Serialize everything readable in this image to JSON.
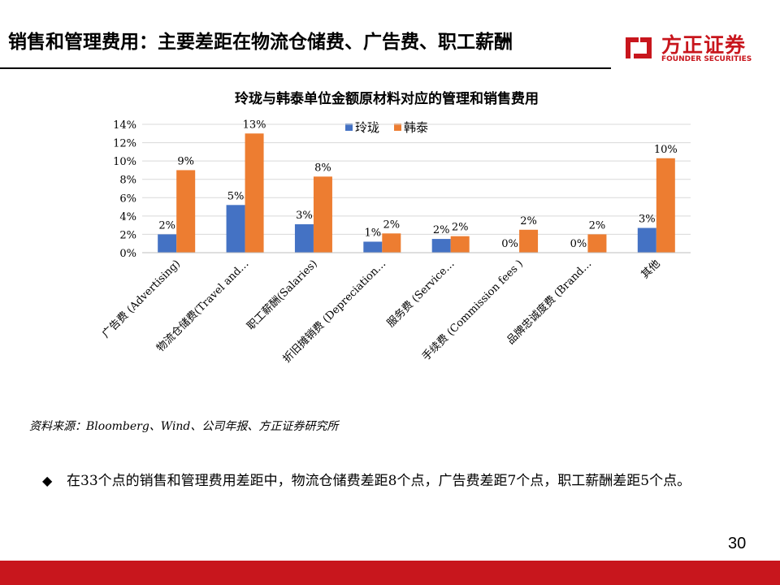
{
  "header": {
    "title": "销售和管理费用：主要差距在物流仓储费、广告费、职工薪酬"
  },
  "logo": {
    "cn": "方正证券",
    "en": "FOUNDER SECURITIES",
    "brand_color": "#c8161d"
  },
  "chart_data": {
    "type": "bar",
    "title": "玲珑与韩泰单位金额原材料对应的管理和销售费用",
    "categories": [
      "广告费 (Advertising)",
      "物流仓储费(Travel and…",
      "职工薪酬(Salaries)",
      "折旧摊销费 (Depreciation…",
      "服务费 (Service…",
      "手续费 (Commission fees )",
      "品牌忠诚度费 (Brand…",
      "其他"
    ],
    "series": [
      {
        "name": "玲珑",
        "color": "#4472c4",
        "values": [
          2.0,
          5.2,
          3.1,
          1.2,
          1.5,
          0.0,
          0.0,
          2.7
        ],
        "labels": [
          "2%",
          "5%",
          "3%",
          "1%",
          "2%",
          "0%",
          "0%",
          "3%"
        ]
      },
      {
        "name": "韩泰",
        "color": "#ed7d31",
        "values": [
          9.0,
          13.0,
          8.3,
          2.1,
          1.8,
          2.5,
          2.0,
          10.3
        ],
        "labels": [
          "9%",
          "13%",
          "8%",
          "2%",
          "2%",
          "2%",
          "2%",
          "10%"
        ]
      }
    ],
    "yticks": [
      "0%",
      "2%",
      "4%",
      "6%",
      "8%",
      "10%",
      "12%",
      "14%"
    ],
    "ylim": [
      0,
      14
    ],
    "xlabel": "",
    "ylabel": "",
    "grid": true,
    "legend": "top-center"
  },
  "source": "资料来源：Bloomberg、Wind、公司年报、方正证券研究所",
  "bullet": {
    "glyph": "◆",
    "text": "在33个点的销售和管理费用差距中，物流仓储费差距8个点，广告费差距7个点，职工薪酬差距5个点。"
  },
  "page_number": "30"
}
